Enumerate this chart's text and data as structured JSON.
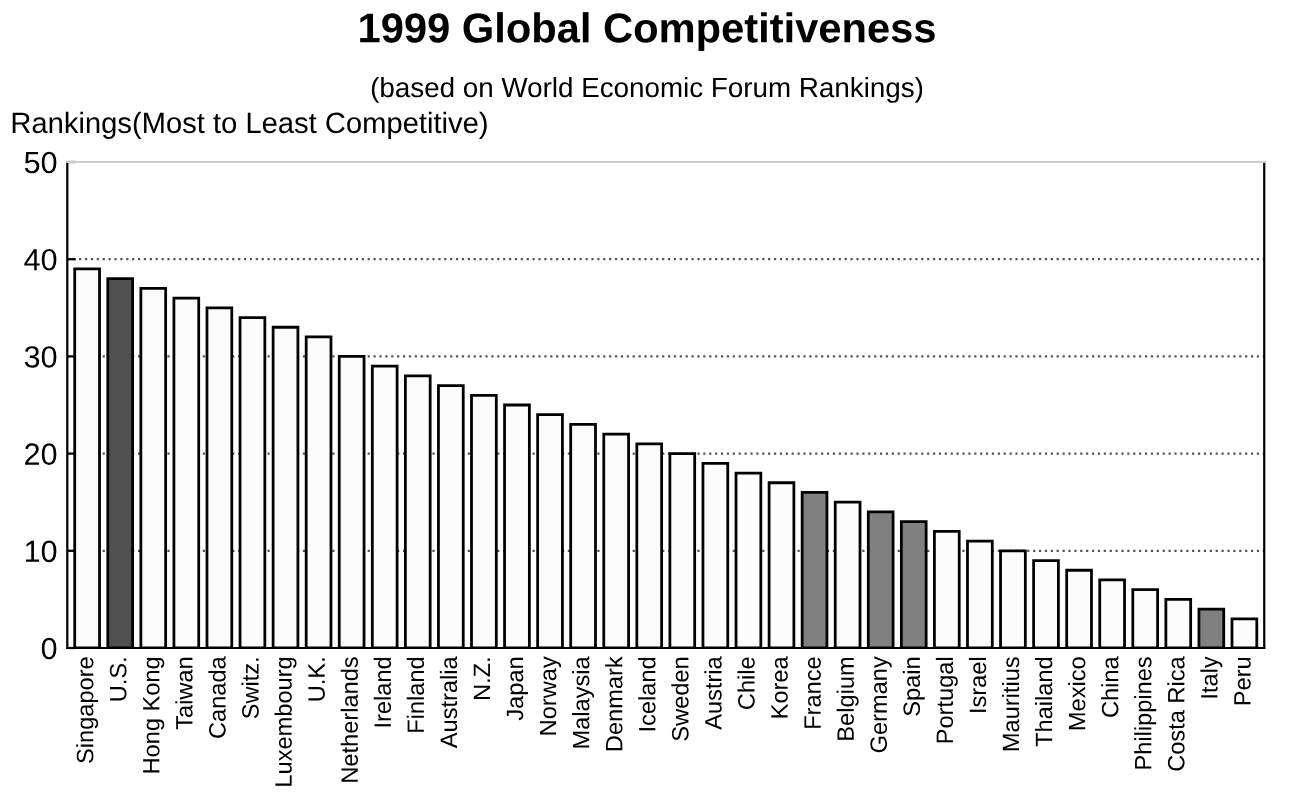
{
  "chart_data": {
    "type": "bar",
    "title": "1999 Global Competitiveness",
    "subtitle": "(based on World Economic Forum Rankings)",
    "ylabel": "Rankings(Most to Least Competitive)",
    "categories": [
      "Singapore",
      "U.S.",
      "Hong Kong",
      "Taiwan",
      "Canada",
      "Switz.",
      "Luxembourg",
      "U.K.",
      "Netherlands",
      "Ireland",
      "Finland",
      "Australia",
      "N.Z.",
      "Japan",
      "Norway",
      "Malaysia",
      "Denmark",
      "Iceland",
      "Sweden",
      "Austria",
      "Chile",
      "Korea",
      "France",
      "Belgium",
      "Germany",
      "Spain",
      "Portugal",
      "Israel",
      "Mauritius",
      "Thailand",
      "Mexico",
      "China",
      "Philippines",
      "Costa Rica",
      "Italy",
      "Peru"
    ],
    "values": [
      39,
      38,
      37,
      36,
      35,
      34,
      33,
      32,
      30,
      29,
      28,
      27,
      26,
      25,
      24,
      23,
      22,
      21,
      20,
      19,
      18,
      17,
      16,
      15,
      14,
      13,
      12,
      11,
      10,
      9,
      8,
      7,
      6,
      5,
      4,
      3
    ],
    "colors": [
      "#fcfcfc",
      "#505050",
      "#fcfcfc",
      "#fcfcfc",
      "#fcfcfc",
      "#fcfcfc",
      "#fcfcfc",
      "#fcfcfc",
      "#fcfcfc",
      "#fcfcfc",
      "#fcfcfc",
      "#fcfcfc",
      "#fcfcfc",
      "#fcfcfc",
      "#fcfcfc",
      "#fcfcfc",
      "#fcfcfc",
      "#fcfcfc",
      "#fcfcfc",
      "#fcfcfc",
      "#fcfcfc",
      "#fcfcfc",
      "#808080",
      "#fcfcfc",
      "#808080",
      "#808080",
      "#fcfcfc",
      "#fcfcfc",
      "#fcfcfc",
      "#fcfcfc",
      "#fcfcfc",
      "#fcfcfc",
      "#fcfcfc",
      "#fcfcfc",
      "#808080",
      "#fcfcfc"
    ],
    "ylim": [
      0,
      50
    ],
    "yticks": [
      0,
      10,
      20,
      30,
      40,
      50
    ],
    "grid": "y",
    "legend": false
  }
}
